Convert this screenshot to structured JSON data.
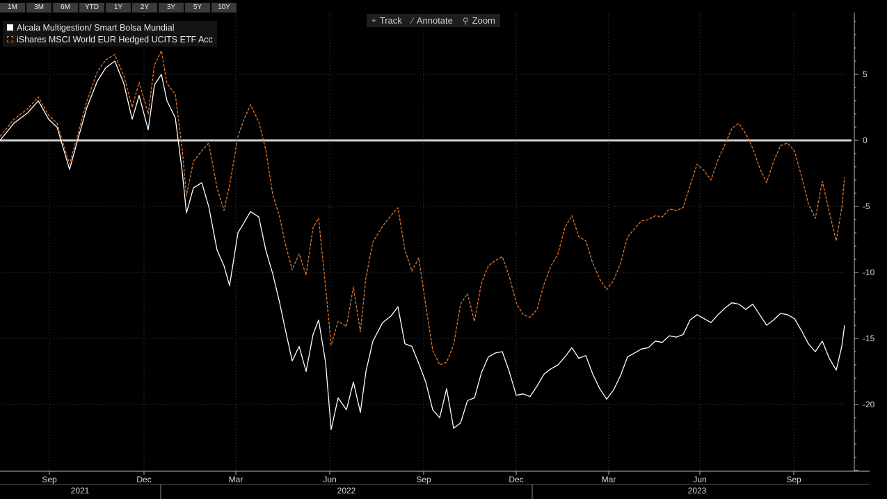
{
  "range_buttons": [
    "1M",
    "3M",
    "6M",
    "YTD",
    "1Y",
    "2Y",
    "3Y",
    "5Y",
    "10Y"
  ],
  "tools": [
    {
      "label": "Track",
      "icon": "crosshair-icon"
    },
    {
      "label": "Annotate",
      "icon": "pencil-icon"
    },
    {
      "label": "Zoom",
      "icon": "magnifier-icon"
    }
  ],
  "colors": {
    "background": "#000000",
    "series_1": "#ffffff",
    "series_2": "#e2772d",
    "zero_line": "#d0d0d0"
  },
  "chart_data": {
    "type": "line",
    "ylim": [
      -25,
      9.5
    ],
    "xlim": [
      0,
      1214
    ],
    "yticks": [
      5,
      0,
      -5,
      -10,
      -15,
      -20
    ],
    "xticks": [
      {
        "label": "Sep",
        "x": 71
      },
      {
        "label": "Dec",
        "x": 207
      },
      {
        "label": "Mar",
        "x": 339
      },
      {
        "label": "Jun",
        "x": 474
      },
      {
        "label": "Sep",
        "x": 609
      },
      {
        "label": "Dec",
        "x": 742
      },
      {
        "label": "Mar",
        "x": 875
      },
      {
        "label": "Jun",
        "x": 1006
      },
      {
        "label": "Sep",
        "x": 1141
      }
    ],
    "years": [
      {
        "label": "2021",
        "x": 115
      },
      {
        "label": "2022",
        "x": 498
      },
      {
        "label": "2023",
        "x": 1002
      }
    ],
    "series": [
      {
        "name": "Alcala Multigestion/ Smart Bolsa Mundial",
        "style": "solid",
        "points": [
          [
            0,
            0
          ],
          [
            20,
            1.3
          ],
          [
            40,
            2.1
          ],
          [
            55,
            3
          ],
          [
            70,
            1.6
          ],
          [
            82,
            1
          ],
          [
            100,
            -2.2
          ],
          [
            112,
            0.1
          ],
          [
            125,
            2.5
          ],
          [
            140,
            4.5
          ],
          [
            152,
            5.5
          ],
          [
            165,
            6
          ],
          [
            178,
            4.3
          ],
          [
            190,
            1.6
          ],
          [
            200,
            3.4
          ],
          [
            213,
            0.8
          ],
          [
            222,
            4.2
          ],
          [
            232,
            5
          ],
          [
            240,
            3
          ],
          [
            252,
            1.7
          ],
          [
            262,
            -2.4
          ],
          [
            268,
            -5.5
          ],
          [
            278,
            -3.6
          ],
          [
            290,
            -3.2
          ],
          [
            300,
            -5
          ],
          [
            312,
            -8.3
          ],
          [
            322,
            -9.5
          ],
          [
            330,
            -11
          ],
          [
            342,
            -7
          ],
          [
            350,
            -6.3
          ],
          [
            360,
            -5.4
          ],
          [
            372,
            -5.8
          ],
          [
            382,
            -8.3
          ],
          [
            392,
            -10.1
          ],
          [
            402,
            -12.3
          ],
          [
            410,
            -14.3
          ],
          [
            420,
            -16.7
          ],
          [
            430,
            -15.6
          ],
          [
            440,
            -17.5
          ],
          [
            450,
            -14.7
          ],
          [
            458,
            -13.6
          ],
          [
            468,
            -16.8
          ],
          [
            476,
            -21.9
          ],
          [
            486,
            -19.5
          ],
          [
            498,
            -20.4
          ],
          [
            508,
            -18.3
          ],
          [
            518,
            -20.6
          ],
          [
            526,
            -17.5
          ],
          [
            536,
            -15.2
          ],
          [
            550,
            -13.8
          ],
          [
            562,
            -13.3
          ],
          [
            572,
            -12.6
          ],
          [
            582,
            -15.4
          ],
          [
            592,
            -15.6
          ],
          [
            602,
            -16.9
          ],
          [
            612,
            -18.3
          ],
          [
            622,
            -20.4
          ],
          [
            632,
            -21
          ],
          [
            642,
            -18.8
          ],
          [
            652,
            -21.8
          ],
          [
            662,
            -21.4
          ],
          [
            672,
            -19.7
          ],
          [
            682,
            -19.5
          ],
          [
            692,
            -17.6
          ],
          [
            702,
            -16.4
          ],
          [
            712,
            -16.1
          ],
          [
            722,
            -16
          ],
          [
            732,
            -17.5
          ],
          [
            742,
            -19.3
          ],
          [
            752,
            -19.2
          ],
          [
            762,
            -19.4
          ],
          [
            772,
            -18.6
          ],
          [
            782,
            -17.7
          ],
          [
            792,
            -17.3
          ],
          [
            802,
            -17
          ],
          [
            812,
            -16.4
          ],
          [
            822,
            -15.7
          ],
          [
            832,
            -16.5
          ],
          [
            842,
            -16.3
          ],
          [
            852,
            -17.7
          ],
          [
            862,
            -18.8
          ],
          [
            872,
            -19.6
          ],
          [
            882,
            -18.9
          ],
          [
            892,
            -17.8
          ],
          [
            902,
            -16.4
          ],
          [
            912,
            -16.1
          ],
          [
            922,
            -15.8
          ],
          [
            932,
            -15.7
          ],
          [
            942,
            -15.2
          ],
          [
            952,
            -15.3
          ],
          [
            962,
            -14.8
          ],
          [
            972,
            -14.9
          ],
          [
            982,
            -14.7
          ],
          [
            992,
            -13.6
          ],
          [
            1002,
            -13.2
          ],
          [
            1012,
            -13.5
          ],
          [
            1022,
            -13.8
          ],
          [
            1032,
            -13.2
          ],
          [
            1042,
            -12.7
          ],
          [
            1052,
            -12.3
          ],
          [
            1062,
            -12.4
          ],
          [
            1072,
            -12.8
          ],
          [
            1082,
            -12.4
          ],
          [
            1092,
            -13.2
          ],
          [
            1102,
            -14
          ],
          [
            1112,
            -13.6
          ],
          [
            1122,
            -13.1
          ],
          [
            1132,
            -13.2
          ],
          [
            1142,
            -13.5
          ],
          [
            1152,
            -14.4
          ],
          [
            1162,
            -15.4
          ],
          [
            1172,
            -16
          ],
          [
            1182,
            -15.2
          ],
          [
            1192,
            -16.5
          ],
          [
            1202,
            -17.4
          ],
          [
            1210,
            -15.6
          ],
          [
            1214,
            -14
          ]
        ]
      },
      {
        "name": "iShares MSCI World EUR Hedged UCITS ETF Acc",
        "style": "dashed",
        "points": [
          [
            0,
            0.3
          ],
          [
            20,
            1.6
          ],
          [
            40,
            2.4
          ],
          [
            55,
            3.3
          ],
          [
            70,
            1.9
          ],
          [
            82,
            1.3
          ],
          [
            100,
            -1.8
          ],
          [
            112,
            0.5
          ],
          [
            125,
            3
          ],
          [
            140,
            5.2
          ],
          [
            152,
            6.1
          ],
          [
            165,
            6.5
          ],
          [
            178,
            4.9
          ],
          [
            190,
            2.5
          ],
          [
            200,
            4.4
          ],
          [
            213,
            2
          ],
          [
            222,
            5.7
          ],
          [
            232,
            6.8
          ],
          [
            240,
            4.3
          ],
          [
            252,
            3.5
          ],
          [
            262,
            -0.7
          ],
          [
            268,
            -4.2
          ],
          [
            278,
            -1.6
          ],
          [
            290,
            -0.8
          ],
          [
            300,
            -0.2
          ],
          [
            312,
            -3.6
          ],
          [
            322,
            -5.3
          ],
          [
            330,
            -3.4
          ],
          [
            342,
            0.3
          ],
          [
            350,
            1.5
          ],
          [
            360,
            2.7
          ],
          [
            372,
            1.4
          ],
          [
            382,
            -0.7
          ],
          [
            392,
            -4.1
          ],
          [
            402,
            -5.8
          ],
          [
            410,
            -7.8
          ],
          [
            420,
            -9.8
          ],
          [
            430,
            -8.6
          ],
          [
            440,
            -10.2
          ],
          [
            450,
            -6.6
          ],
          [
            458,
            -5.9
          ],
          [
            468,
            -11.1
          ],
          [
            476,
            -15.5
          ],
          [
            486,
            -13.7
          ],
          [
            498,
            -14.1
          ],
          [
            508,
            -11.1
          ],
          [
            518,
            -14.5
          ],
          [
            526,
            -10.4
          ],
          [
            536,
            -7.7
          ],
          [
            550,
            -6.5
          ],
          [
            562,
            -5.7
          ],
          [
            572,
            -5.1
          ],
          [
            582,
            -8.3
          ],
          [
            592,
            -9.9
          ],
          [
            602,
            -8.9
          ],
          [
            612,
            -12.5
          ],
          [
            622,
            -15.9
          ],
          [
            632,
            -17
          ],
          [
            642,
            -16.8
          ],
          [
            652,
            -15.5
          ],
          [
            662,
            -12.4
          ],
          [
            672,
            -11.6
          ],
          [
            682,
            -13.7
          ],
          [
            692,
            -10.8
          ],
          [
            702,
            -9.5
          ],
          [
            712,
            -9.1
          ],
          [
            722,
            -8.8
          ],
          [
            732,
            -10.3
          ],
          [
            742,
            -12.3
          ],
          [
            752,
            -13.2
          ],
          [
            762,
            -13.4
          ],
          [
            772,
            -12.8
          ],
          [
            782,
            -10.9
          ],
          [
            792,
            -9.5
          ],
          [
            802,
            -8.6
          ],
          [
            812,
            -6.6
          ],
          [
            822,
            -5.7
          ],
          [
            832,
            -7.3
          ],
          [
            842,
            -7.6
          ],
          [
            852,
            -9.3
          ],
          [
            862,
            -10.5
          ],
          [
            872,
            -11.3
          ],
          [
            882,
            -10.6
          ],
          [
            892,
            -9.3
          ],
          [
            902,
            -7.3
          ],
          [
            912,
            -6.7
          ],
          [
            922,
            -6.1
          ],
          [
            932,
            -6
          ],
          [
            942,
            -5.7
          ],
          [
            952,
            -5.8
          ],
          [
            962,
            -5.2
          ],
          [
            972,
            -5.3
          ],
          [
            982,
            -5.1
          ],
          [
            992,
            -3.4
          ],
          [
            1002,
            -1.8
          ],
          [
            1012,
            -2.3
          ],
          [
            1022,
            -3
          ],
          [
            1032,
            -1.5
          ],
          [
            1042,
            -0.3
          ],
          [
            1052,
            0.9
          ],
          [
            1062,
            1.3
          ],
          [
            1072,
            0.5
          ],
          [
            1082,
            -0.6
          ],
          [
            1092,
            -2.1
          ],
          [
            1102,
            -3.2
          ],
          [
            1112,
            -1.6
          ],
          [
            1122,
            -0.4
          ],
          [
            1132,
            -0.2
          ],
          [
            1142,
            -0.8
          ],
          [
            1152,
            -2.7
          ],
          [
            1162,
            -4.8
          ],
          [
            1172,
            -5.9
          ],
          [
            1182,
            -3.1
          ],
          [
            1192,
            -5.4
          ],
          [
            1202,
            -7.6
          ],
          [
            1210,
            -5.1
          ],
          [
            1214,
            -2.8
          ]
        ]
      }
    ]
  }
}
